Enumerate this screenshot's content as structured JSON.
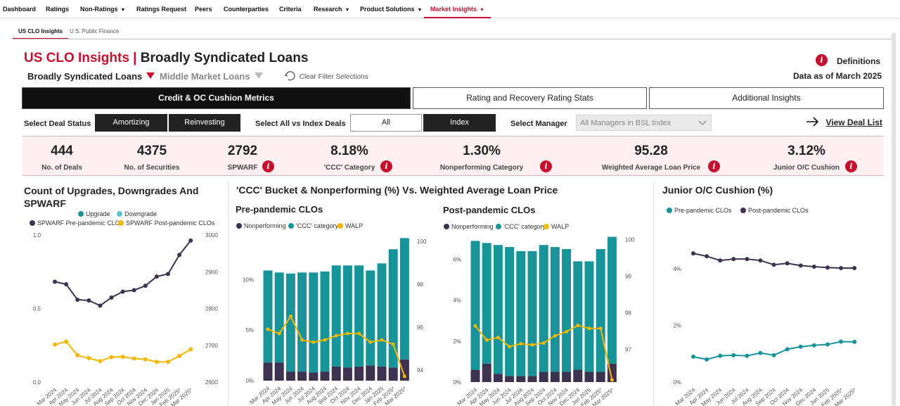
{
  "nav": {
    "items": [
      {
        "label": "Dashboard",
        "caret": false,
        "active": false
      },
      {
        "label": "Ratings",
        "caret": false,
        "active": false
      },
      {
        "label": "Non-Ratings",
        "caret": true,
        "active": false
      },
      {
        "label": "Ratings Request",
        "caret": false,
        "active": false
      },
      {
        "label": "Peers",
        "caret": false,
        "active": false
      },
      {
        "label": "Counterparties",
        "caret": false,
        "active": false
      },
      {
        "label": "Criteria",
        "caret": false,
        "active": false
      },
      {
        "label": "Research",
        "caret": true,
        "active": false
      },
      {
        "label": "Product Solutions",
        "caret": true,
        "active": false
      },
      {
        "label": "Market Insights",
        "caret": true,
        "active": true
      }
    ]
  },
  "subtabs": [
    "US CLO Insights",
    "U.S. Public Finance"
  ],
  "header": {
    "title_red": "US CLO Insights |",
    "title_black": "Broadly Syndicated Loans",
    "definitions": "Definitions",
    "data_as_of": "Data as of March 2025",
    "info_glyph": "i"
  },
  "filters": {
    "bsl": "Broadly Syndicated Loans",
    "mm": "Middle Market Loans",
    "clear": "Clear Filter Selections"
  },
  "tabs": [
    "Credit & OC Cushion Metrics",
    "Rating and Recovery Rating Stats",
    "Additional Insights"
  ],
  "controls": {
    "deal_status_label": "Select Deal Status",
    "amortizing": "Amortizing",
    "reinvesting": "Reinvesting",
    "all_vs_index_label": "Select All vs Index Deals",
    "all": "All",
    "index": "Index",
    "manager_label": "Select Manager",
    "manager_value": "All Managers in BSL Index",
    "view_deal_list": "View Deal List"
  },
  "kpis": [
    {
      "value": "444",
      "label": "No. of Deals",
      "info": false
    },
    {
      "value": "4375",
      "label": "No. of Securities",
      "info": false
    },
    {
      "value": "2792",
      "label": "SPWARF",
      "info": true
    },
    {
      "value": "8.18%",
      "label": "'CCC' Category",
      "info": true
    },
    {
      "value": "1.30%",
      "label": "Nonperforming Category",
      "info": true
    },
    {
      "value": "95.28",
      "label": "Weighted Average Loan Price",
      "info": true
    },
    {
      "value": "3.12%",
      "label": "Junior O/C Cushion",
      "info": true
    }
  ],
  "colors": {
    "purple": "#3d3350",
    "teal": "#17949a",
    "light_teal": "#5cc6d0",
    "yellow": "#f5b700",
    "red": "#c8102e"
  },
  "upgrades_chart": {
    "title": "Count of Upgrades, Downgrades And SPWARF",
    "legend": [
      {
        "label": "Upgrade",
        "color": "#17949a"
      },
      {
        "label": "Downgrade",
        "color": "#5cc6d0"
      },
      {
        "label": "SPWARF Pre-pandemic CLOs",
        "color": "#3d3350"
      },
      {
        "label": "SPWARF Post-pandemic CLOs",
        "color": "#f5b700"
      }
    ]
  },
  "ccc_title": "'CCC' Bucket & Nonperforming (%) Vs. Weighted Average Loan Price",
  "pre_chart": {
    "title": "Pre-pandemic CLOs",
    "legend": [
      {
        "label": "Nonperforming",
        "color": "#3d3350"
      },
      {
        "label": "'CCC' category",
        "color": "#17949a"
      },
      {
        "label": "WALP",
        "color": "#f5b700"
      }
    ]
  },
  "post_chart": {
    "title": "Post-pandemic CLOs",
    "legend": [
      {
        "label": "Nonperforming",
        "color": "#3d3350"
      },
      {
        "label": "'CCC' category",
        "color": "#17949a"
      },
      {
        "label": "WALP",
        "color": "#f5b700"
      }
    ]
  },
  "oc_chart": {
    "title": "Junior O/C Cushion (%)",
    "legend": [
      {
        "label": "Pre-pandemic CLOs",
        "color": "#17949a"
      },
      {
        "label": "Post-pandemic CLOs",
        "color": "#3d3350"
      }
    ]
  },
  "chart_data": [
    {
      "type": "line",
      "title": "Count of Upgrades, Downgrades And SPWARF",
      "x": [
        "Mar 2024",
        "Apr 2024",
        "May 2024",
        "Jun 2024",
        "Jul 2024",
        "Aug 2024",
        "Sep 2024",
        "Oct 2024",
        "Nov 2024",
        "Dec 2024",
        "Jan 2025",
        "Feb 2025*",
        "Mar 2025*"
      ],
      "y_ticks": [
        "0.0",
        "0.5",
        "1.0"
      ],
      "y2_ticks": [
        "2600",
        "2700",
        "2800",
        "2900",
        "3000"
      ],
      "ylim": [
        0,
        1
      ],
      "y2lim": [
        2600,
        3000
      ],
      "series": [
        {
          "name": "SPWARF Pre-pandemic CLOs",
          "axis": "right",
          "color": "#3d3350",
          "values": [
            2873,
            2866,
            2824,
            2822,
            2808,
            2830,
            2846,
            2850,
            2862,
            2887,
            2894,
            2946,
            2985
          ]
        },
        {
          "name": "SPWARF Post-pandemic CLOs",
          "axis": "right",
          "color": "#f5b700",
          "values": [
            2702,
            2710,
            2673,
            2665,
            2657,
            2668,
            2669,
            2664,
            2662,
            2655,
            2655,
            2671,
            2689
          ]
        }
      ]
    },
    {
      "type": "bar",
      "title": "Pre-pandemic CLOs",
      "x": [
        "Mar 2024",
        "Apr 2024",
        "May 2024",
        "Jun 2024",
        "Jul 2024",
        "Aug 2024",
        "Sep 2024",
        "Oct 2024",
        "Nov 2024",
        "Dec 2024",
        "Jan 2025",
        "Feb 2025*",
        "Mar 2025*"
      ],
      "y_ticks": [
        "0%",
        "5%",
        "10%"
      ],
      "y2_ticks": [
        "94",
        "96",
        "98",
        "100"
      ],
      "ylim": [
        0,
        14.2
      ],
      "y2lim": [
        93.5,
        100.2
      ],
      "series": [
        {
          "name": "Nonperforming",
          "color": "#3d3350",
          "values": [
            1.8,
            1.8,
            0.9,
            0.9,
            0.8,
            0.9,
            1.4,
            1.3,
            1.4,
            1.5,
            1.4,
            1.3,
            2.1
          ]
        },
        {
          "name": "'CCC' category",
          "color": "#17949a",
          "values": [
            9.1,
            8.9,
            9.7,
            9.8,
            9.9,
            9.9,
            10.0,
            10.1,
            10.0,
            9.4,
            10.2,
            11.7,
            12.0
          ]
        },
        {
          "name": "WALP",
          "axis": "right",
          "color": "#f5b700",
          "values": [
            95.9,
            95.7,
            96.5,
            95.4,
            95.3,
            95.4,
            95.6,
            95.7,
            95.7,
            95.3,
            95.4,
            95.2,
            93.7
          ]
        }
      ]
    },
    {
      "type": "bar",
      "title": "Post-pandemic CLOs",
      "x": [
        "Mar 2024",
        "Apr 2024",
        "May 2024",
        "Jun 2024",
        "Jul 2024",
        "Aug 2024",
        "Sep 2024",
        "Oct 2024",
        "Nov 2024",
        "Dec 2024",
        "Jan 2025",
        "Feb 2025*",
        "Mar 2025*"
      ],
      "y_ticks": [
        "0%",
        "2%",
        "4%",
        "6%"
      ],
      "y2_ticks": [
        "97",
        "98",
        "99",
        "100"
      ],
      "ylim": [
        0,
        7.05
      ],
      "y2lim": [
        96.1,
        100.05
      ],
      "series": [
        {
          "name": "Nonperforming",
          "color": "#3d3350",
          "values": [
            0.6,
            0.9,
            0.4,
            0.3,
            0.3,
            0.3,
            0.5,
            0.5,
            0.5,
            0.6,
            0.5,
            0.5,
            0.9
          ]
        },
        {
          "name": "'CCC' category",
          "color": "#17949a",
          "values": [
            6.3,
            5.9,
            6.3,
            6.3,
            6.1,
            6.1,
            6.2,
            6.1,
            6.0,
            5.3,
            5.4,
            6.0,
            6.2
          ]
        },
        {
          "name": "WALP",
          "axis": "right",
          "color": "#f5b700",
          "values": [
            97.64,
            97.25,
            97.32,
            97.07,
            97.15,
            97.12,
            97.17,
            97.37,
            97.48,
            97.65,
            97.57,
            97.57,
            96.16
          ]
        }
      ]
    },
    {
      "type": "line",
      "title": "Junior O/C Cushion (%)",
      "x": [
        "Mar 2024",
        "Apr 2024",
        "May 2024",
        "Jun 2024",
        "Jul 2024",
        "Aug 2024",
        "Sep 2024",
        "Oct 2024",
        "Nov 2024",
        "Dec 2024",
        "Jan 2025",
        "Feb 2025*",
        "Mar 2025*"
      ],
      "y_ticks": [
        "0%",
        "2%",
        "4%"
      ],
      "ylim": [
        0,
        5.3
      ],
      "series": [
        {
          "name": "Pre-pandemic CLOs",
          "color": "#17949a",
          "values": [
            0.9,
            0.8,
            0.93,
            0.95,
            0.93,
            1.03,
            0.95,
            1.16,
            1.25,
            1.3,
            1.33,
            1.43,
            1.42
          ]
        },
        {
          "name": "Post-pandemic CLOs",
          "color": "#3d3350",
          "values": [
            4.55,
            4.45,
            4.3,
            4.35,
            4.35,
            4.3,
            4.15,
            4.2,
            4.12,
            4.08,
            4.05,
            4.03,
            4.03
          ]
        }
      ]
    }
  ]
}
